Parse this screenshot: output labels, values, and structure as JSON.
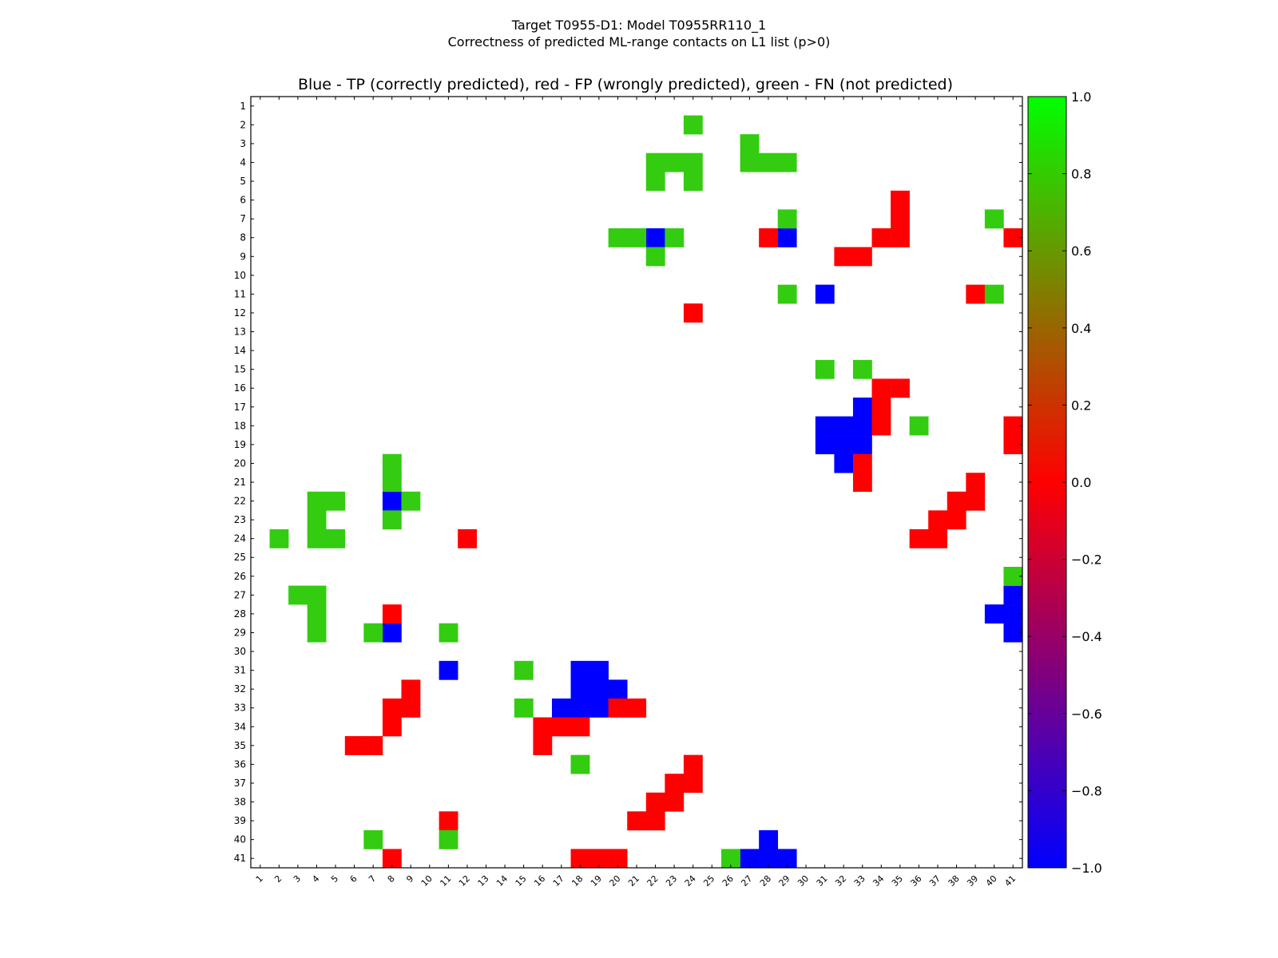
{
  "figure": {
    "suptitle_line1": "Target T0955-D1: Model T0955RR110_1",
    "suptitle_line2": "Correctness of predicted ML-range contacts on L1 list (p>0)"
  },
  "chart_data": {
    "type": "heatmap",
    "title": "Blue - TP (correctly predicted), red - FP (wrongly predicted), green - FN (not predicted)",
    "xlabel": "",
    "ylabel": "",
    "x_ticks": [
      "1",
      "2",
      "3",
      "4",
      "5",
      "6",
      "7",
      "8",
      "9",
      "10",
      "11",
      "12",
      "13",
      "14",
      "15",
      "16",
      "17",
      "18",
      "19",
      "20",
      "21",
      "22",
      "23",
      "24",
      "25",
      "26",
      "27",
      "28",
      "29",
      "30",
      "31",
      "32",
      "33",
      "34",
      "35",
      "36",
      "37",
      "38",
      "39",
      "40",
      "41"
    ],
    "y_ticks": [
      "1",
      "2",
      "3",
      "4",
      "5",
      "6",
      "7",
      "8",
      "9",
      "10",
      "11",
      "12",
      "13",
      "14",
      "15",
      "16",
      "17",
      "18",
      "19",
      "20",
      "21",
      "22",
      "23",
      "24",
      "25",
      "26",
      "27",
      "28",
      "29",
      "30",
      "31",
      "32",
      "33",
      "34",
      "35",
      "36",
      "37",
      "38",
      "39",
      "40",
      "41"
    ],
    "x_range": [
      1,
      41
    ],
    "y_range": [
      1,
      41
    ],
    "grid": false,
    "legend": {
      "TP": {
        "value": -1.0,
        "color": "#0000ff",
        "label": "Blue - TP (correctly predicted)"
      },
      "FP": {
        "value": 0.0,
        "color": "#ff0000",
        "label": "red - FP (wrongly predicted)"
      },
      "FN": {
        "value": 0.8,
        "color": "#33cc11",
        "label": "green - FN (not predicted)"
      }
    },
    "colorbar": {
      "min": -1.0,
      "max": 1.0,
      "tick_labels": [
        "1.0",
        "0.8",
        "0.6",
        "0.4",
        "0.2",
        "0.0",
        "−0.2",
        "−0.4",
        "−0.6",
        "−0.8",
        "−1.0"
      ],
      "tick_values": [
        1.0,
        0.8,
        0.6,
        0.4,
        0.2,
        0.0,
        -0.2,
        -0.4,
        -0.6,
        -0.8,
        -1.0
      ],
      "stops": [
        {
          "value": -1.0,
          "color": "#0000ff"
        },
        {
          "value": 0.0,
          "color": "#ff0000"
        },
        {
          "value": 1.0,
          "color": "#00ff00"
        }
      ]
    },
    "cells": {
      "TP": [
        [
          8,
          22
        ],
        [
          8,
          29
        ],
        [
          11,
          31
        ],
        [
          17,
          33
        ],
        [
          18,
          31
        ],
        [
          18,
          32
        ],
        [
          18,
          33
        ],
        [
          19,
          31
        ],
        [
          19,
          32
        ],
        [
          19,
          33
        ],
        [
          20,
          32
        ],
        [
          22,
          8
        ],
        [
          27,
          41
        ],
        [
          28,
          40
        ],
        [
          28,
          41
        ],
        [
          29,
          8
        ],
        [
          29,
          41
        ],
        [
          31,
          11
        ],
        [
          31,
          18
        ],
        [
          31,
          19
        ],
        [
          32,
          18
        ],
        [
          32,
          19
        ],
        [
          32,
          20
        ],
        [
          33,
          17
        ],
        [
          33,
          18
        ],
        [
          33,
          19
        ],
        [
          40,
          28
        ],
        [
          41,
          27
        ],
        [
          41,
          28
        ],
        [
          41,
          29
        ]
      ],
      "FP": [
        [
          6,
          35
        ],
        [
          7,
          35
        ],
        [
          8,
          28
        ],
        [
          8,
          34
        ],
        [
          8,
          35
        ],
        [
          8,
          41
        ],
        [
          9,
          32
        ],
        [
          9,
          33
        ],
        [
          11,
          39
        ],
        [
          12,
          24
        ],
        [
          16,
          34
        ],
        [
          16,
          35
        ],
        [
          17,
          34
        ],
        [
          18,
          34
        ],
        [
          18,
          41
        ],
        [
          19,
          41
        ],
        [
          20,
          33
        ],
        [
          21,
          33
        ],
        [
          21,
          39
        ],
        [
          22,
          38
        ],
        [
          22,
          39
        ],
        [
          23,
          37
        ],
        [
          23,
          38
        ],
        [
          24,
          12
        ],
        [
          24,
          36
        ],
        [
          24,
          37
        ],
        [
          28,
          8
        ],
        [
          32,
          9
        ],
        [
          33,
          8
        ],
        [
          33,
          9
        ],
        [
          33,
          20
        ],
        [
          33,
          21
        ],
        [
          34,
          8
        ],
        [
          34,
          16
        ],
        [
          34,
          17
        ],
        [
          34,
          18
        ],
        [
          35,
          6
        ],
        [
          35,
          7
        ],
        [
          35,
          16
        ],
        [
          36,
          24
        ],
        [
          37,
          23
        ],
        [
          37,
          24
        ],
        [
          38,
          22
        ],
        [
          38,
          23
        ],
        [
          39,
          11
        ],
        [
          39,
          21
        ],
        [
          39,
          22
        ],
        [
          41,
          8
        ],
        [
          41,
          18
        ],
        [
          41,
          19
        ],
        [
          41,
          20
        ]
      ],
      "FN": [
        [
          2,
          24
        ],
        [
          3,
          27
        ],
        [
          4,
          22
        ],
        [
          4,
          23
        ],
        [
          4,
          24
        ],
        [
          4,
          27
        ],
        [
          4,
          28
        ],
        [
          4,
          29
        ],
        [
          5,
          22
        ],
        [
          5,
          24
        ],
        [
          7,
          29
        ],
        [
          7,
          40
        ],
        [
          8,
          20
        ],
        [
          8,
          21
        ],
        [
          8,
          23
        ],
        [
          9,
          22
        ],
        [
          11,
          29
        ],
        [
          11,
          40
        ],
        [
          15,
          31
        ],
        [
          15,
          33
        ],
        [
          18,
          36
        ],
        [
          20,
          8
        ],
        [
          21,
          8
        ],
        [
          22,
          4
        ],
        [
          22,
          5
        ],
        [
          22,
          9
        ],
        [
          23,
          4
        ],
        [
          23,
          8
        ],
        [
          24,
          2
        ],
        [
          24,
          4
        ],
        [
          24,
          5
        ],
        [
          26,
          41
        ],
        [
          27,
          3
        ],
        [
          27,
          4
        ],
        [
          28,
          4
        ],
        [
          29,
          4
        ],
        [
          29,
          7
        ],
        [
          29,
          11
        ],
        [
          31,
          15
        ],
        [
          33,
          15
        ],
        [
          36,
          18
        ],
        [
          40,
          7
        ],
        [
          40,
          11
        ],
        [
          41,
          26
        ]
      ]
    }
  }
}
